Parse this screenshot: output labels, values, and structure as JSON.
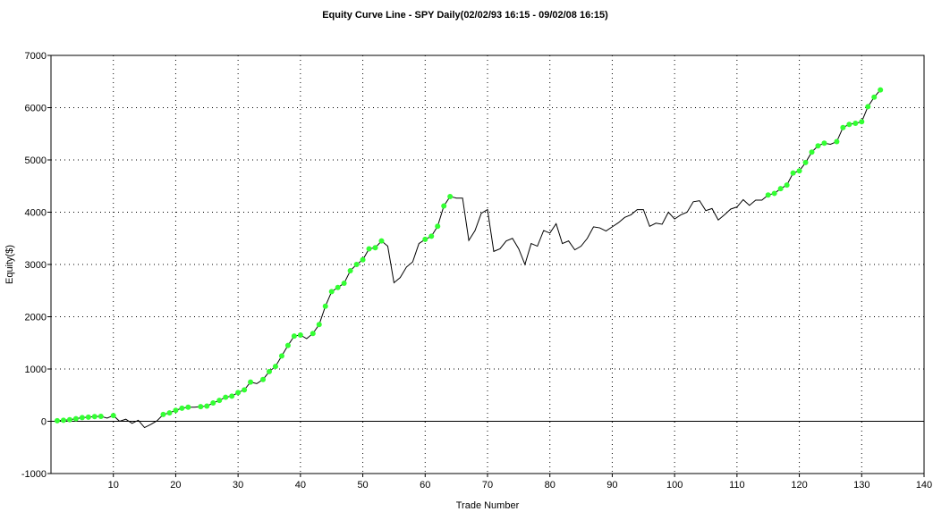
{
  "chart_data": {
    "type": "line",
    "title": "Equity Curve Line - SPY Daily(02/02/93 16:15 - 09/02/08 16:15)",
    "x_label": "Trade Number",
    "y_label": "Equity($)",
    "x": [
      1,
      2,
      3,
      4,
      5,
      6,
      7,
      8,
      9,
      10,
      11,
      12,
      13,
      14,
      15,
      16,
      17,
      18,
      19,
      20,
      21,
      22,
      23,
      24,
      25,
      26,
      27,
      28,
      29,
      30,
      31,
      32,
      33,
      34,
      35,
      36,
      37,
      38,
      39,
      40,
      41,
      42,
      43,
      44,
      45,
      46,
      47,
      48,
      49,
      50,
      51,
      52,
      53,
      54,
      55,
      56,
      57,
      58,
      59,
      60,
      61,
      62,
      63,
      64,
      65,
      66,
      67,
      68,
      69,
      70,
      71,
      72,
      73,
      74,
      75,
      76,
      77,
      78,
      79,
      80,
      81,
      82,
      83,
      84,
      85,
      86,
      87,
      88,
      89,
      90,
      91,
      92,
      93,
      94,
      95,
      96,
      97,
      98,
      99,
      100,
      101,
      102,
      103,
      104,
      105,
      106,
      107,
      108,
      109,
      110,
      111,
      112,
      113,
      114,
      115,
      116,
      117,
      118,
      119,
      120,
      121,
      122,
      123,
      124,
      125,
      126,
      127,
      128,
      129,
      130,
      131,
      132,
      133
    ],
    "series": [
      {
        "name": "Equity",
        "color": "#000000",
        "marker_color": "#33ff33",
        "values": [
          10,
          20,
          30,
          50,
          70,
          80,
          90,
          95,
          60,
          110,
          0,
          40,
          -40,
          20,
          -120,
          -60,
          10,
          130,
          160,
          210,
          250,
          270,
          270,
          280,
          290,
          350,
          400,
          460,
          480,
          550,
          600,
          750,
          720,
          800,
          950,
          1050,
          1250,
          1450,
          1630,
          1650,
          1580,
          1680,
          1850,
          2200,
          2480,
          2560,
          2640,
          2880,
          3000,
          3090,
          3300,
          3320,
          3450,
          3350,
          2650,
          2750,
          2950,
          3050,
          3400,
          3480,
          3540,
          3730,
          4120,
          4300,
          4270,
          4270,
          3460,
          3650,
          3980,
          4050,
          3250,
          3300,
          3450,
          3500,
          3300,
          3000,
          3400,
          3350,
          3650,
          3600,
          3780,
          3400,
          3450,
          3280,
          3350,
          3500,
          3720,
          3700,
          3640,
          3720,
          3800,
          3900,
          3950,
          4050,
          4050,
          3730,
          3790,
          3770,
          4000,
          3870,
          3950,
          4000,
          4200,
          4220,
          4030,
          4070,
          3850,
          3950,
          4060,
          4100,
          4240,
          4130,
          4230,
          4230,
          4330,
          4360,
          4450,
          4520,
          4750,
          4790,
          4950,
          5150,
          5270,
          5320,
          5300,
          5350,
          5620,
          5680,
          5700,
          5730,
          6020,
          6200,
          6340
        ]
      }
    ],
    "xlim": [
      0,
      140
    ],
    "xticks": [
      10,
      20,
      30,
      40,
      50,
      60,
      70,
      80,
      90,
      100,
      110,
      120,
      130,
      140
    ],
    "ylim": [
      -1000,
      7000
    ],
    "yticks": [
      -1000,
      0,
      1000,
      2000,
      3000,
      4000,
      5000,
      6000,
      7000
    ],
    "grid": true
  }
}
